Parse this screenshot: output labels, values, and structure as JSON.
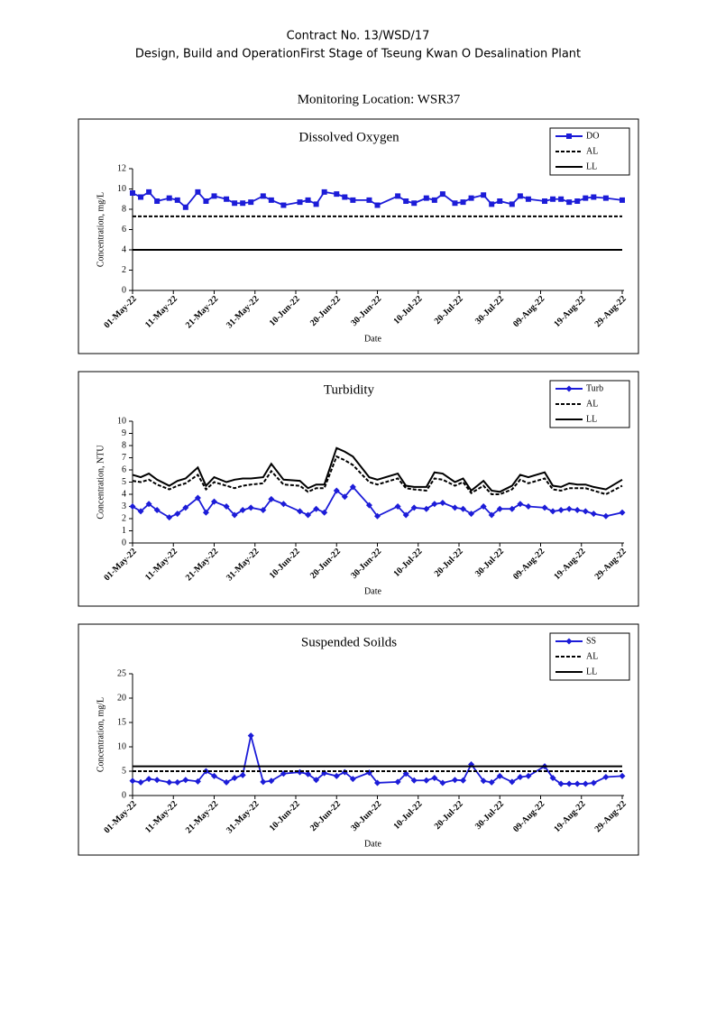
{
  "header": {
    "line1": "Contract No. 13/WSD/17",
    "line2": "Design, Build and OperationFirst Stage  of Tseung Kwan O Desalination Plant",
    "location": "Monitoring Location: WSR37"
  },
  "chart_data": [
    {
      "type": "line",
      "title": "Dissolved Oxygen",
      "xlabel": "Date",
      "ylabel": "Concentration, mg/L",
      "x": [
        "2022-05-01",
        "2022-05-03",
        "2022-05-05",
        "2022-05-07",
        "2022-05-10",
        "2022-05-12",
        "2022-05-14",
        "2022-05-17",
        "2022-05-19",
        "2022-05-21",
        "2022-05-24",
        "2022-05-26",
        "2022-05-28",
        "2022-05-30",
        "2022-06-02",
        "2022-06-04",
        "2022-06-07",
        "2022-06-11",
        "2022-06-13",
        "2022-06-15",
        "2022-06-17",
        "2022-06-20",
        "2022-06-22",
        "2022-06-24",
        "2022-06-28",
        "2022-06-30",
        "2022-07-05",
        "2022-07-07",
        "2022-07-09",
        "2022-07-12",
        "2022-07-14",
        "2022-07-16",
        "2022-07-19",
        "2022-07-21",
        "2022-07-23",
        "2022-07-26",
        "2022-07-28",
        "2022-07-30",
        "2022-08-02",
        "2022-08-04",
        "2022-08-06",
        "2022-08-10",
        "2022-08-12",
        "2022-08-14",
        "2022-08-16",
        "2022-08-18",
        "2022-08-20",
        "2022-08-22",
        "2022-08-25",
        "2022-08-29"
      ],
      "series": [
        {
          "name": "DO",
          "color": "#1c1cd8",
          "marker": "square",
          "line_style": "solid",
          "values": [
            9.6,
            9.2,
            9.7,
            8.8,
            9.1,
            8.9,
            8.2,
            9.7,
            8.8,
            9.3,
            9.0,
            8.6,
            8.6,
            8.7,
            9.3,
            8.9,
            8.4,
            8.7,
            8.9,
            8.5,
            9.7,
            9.5,
            9.2,
            8.9,
            8.9,
            8.4,
            9.3,
            8.8,
            8.6,
            9.1,
            8.9,
            9.5,
            8.6,
            8.7,
            9.1,
            9.4,
            8.5,
            8.8,
            8.5,
            9.3,
            9.0,
            8.8,
            9.0,
            9.0,
            8.7,
            8.8,
            9.1,
            9.2,
            9.1,
            8.9
          ]
        },
        {
          "name": "AL",
          "color": "#000000",
          "marker": "none",
          "line_style": "dashed",
          "values": [
            7.3,
            7.3,
            7.3,
            7.3,
            7.3,
            7.3,
            7.3,
            7.3,
            7.3,
            7.3,
            7.3,
            7.3,
            7.3,
            7.3,
            7.3,
            7.3,
            7.3,
            7.3,
            7.3,
            7.3,
            7.3,
            7.3,
            7.3,
            7.3,
            7.3,
            7.3,
            7.3,
            7.3,
            7.3,
            7.3,
            7.3,
            7.3,
            7.3,
            7.3,
            7.3,
            7.3,
            7.3,
            7.3,
            7.3,
            7.3,
            7.3,
            7.3,
            7.3,
            7.3,
            7.3,
            7.3,
            7.3,
            7.3,
            7.3,
            7.3
          ]
        },
        {
          "name": "LL",
          "color": "#000000",
          "marker": "none",
          "line_style": "solid",
          "values": [
            4,
            4,
            4,
            4,
            4,
            4,
            4,
            4,
            4,
            4,
            4,
            4,
            4,
            4,
            4,
            4,
            4,
            4,
            4,
            4,
            4,
            4,
            4,
            4,
            4,
            4,
            4,
            4,
            4,
            4,
            4,
            4,
            4,
            4,
            4,
            4,
            4,
            4,
            4,
            4,
            4,
            4,
            4,
            4,
            4,
            4,
            4,
            4,
            4,
            4
          ]
        }
      ],
      "xlim": [
        "2022-05-01",
        "2022-08-29"
      ],
      "xticks": [
        {
          "value": "2022-05-01",
          "label": "01-May-22"
        },
        {
          "value": "2022-05-11",
          "label": "11-May-22"
        },
        {
          "value": "2022-05-21",
          "label": "21-May-22"
        },
        {
          "value": "2022-05-31",
          "label": "31-May-22"
        },
        {
          "value": "2022-06-10",
          "label": "10-Jun-22"
        },
        {
          "value": "2022-06-20",
          "label": "20-Jun-22"
        },
        {
          "value": "2022-06-30",
          "label": "30-Jun-22"
        },
        {
          "value": "2022-07-10",
          "label": "10-Jul-22"
        },
        {
          "value": "2022-07-20",
          "label": "20-Jul-22"
        },
        {
          "value": "2022-07-30",
          "label": "30-Jul-22"
        },
        {
          "value": "2022-08-09",
          "label": "09-Aug-22"
        },
        {
          "value": "2022-08-19",
          "label": "19-Aug-22"
        },
        {
          "value": "2022-08-29",
          "label": "29-Aug-22"
        }
      ],
      "ylim": [
        0,
        12
      ],
      "yticks": [
        0,
        2,
        4,
        6,
        8,
        10,
        12
      ],
      "grid": false,
      "legend": "upper right"
    },
    {
      "type": "line",
      "title": "Turbidity",
      "xlabel": "Date",
      "ylabel": "Concentration, NTU",
      "x": [
        "2022-05-01",
        "2022-05-03",
        "2022-05-05",
        "2022-05-07",
        "2022-05-10",
        "2022-05-12",
        "2022-05-14",
        "2022-05-17",
        "2022-05-19",
        "2022-05-21",
        "2022-05-24",
        "2022-05-26",
        "2022-05-28",
        "2022-05-30",
        "2022-06-02",
        "2022-06-04",
        "2022-06-07",
        "2022-06-11",
        "2022-06-13",
        "2022-06-15",
        "2022-06-17",
        "2022-06-20",
        "2022-06-22",
        "2022-06-24",
        "2022-06-28",
        "2022-06-30",
        "2022-07-05",
        "2022-07-07",
        "2022-07-09",
        "2022-07-12",
        "2022-07-14",
        "2022-07-16",
        "2022-07-19",
        "2022-07-21",
        "2022-07-23",
        "2022-07-26",
        "2022-07-28",
        "2022-07-30",
        "2022-08-02",
        "2022-08-04",
        "2022-08-06",
        "2022-08-10",
        "2022-08-12",
        "2022-08-14",
        "2022-08-16",
        "2022-08-18",
        "2022-08-20",
        "2022-08-22",
        "2022-08-25",
        "2022-08-29"
      ],
      "series": [
        {
          "name": "Turb",
          "color": "#1c1cd8",
          "marker": "diamond",
          "line_style": "solid",
          "values": [
            3.0,
            2.6,
            3.2,
            2.7,
            2.1,
            2.4,
            2.9,
            3.7,
            2.5,
            3.4,
            3.0,
            2.3,
            2.7,
            2.9,
            2.7,
            3.6,
            3.2,
            2.6,
            2.3,
            2.8,
            2.5,
            4.3,
            3.8,
            4.6,
            3.1,
            2.2,
            3.0,
            2.3,
            2.9,
            2.8,
            3.2,
            3.3,
            2.9,
            2.8,
            2.4,
            3.0,
            2.3,
            2.8,
            2.8,
            3.2,
            3.0,
            2.9,
            2.6,
            2.7,
            2.8,
            2.7,
            2.6,
            2.4,
            2.2,
            2.5
          ]
        },
        {
          "name": "AL",
          "color": "#000000",
          "marker": "none",
          "line_style": "dashed",
          "values": [
            5.1,
            5.0,
            5.2,
            4.8,
            4.4,
            4.7,
            4.9,
            5.6,
            4.4,
            5.0,
            4.7,
            4.5,
            4.7,
            4.8,
            4.9,
            5.9,
            4.8,
            4.7,
            4.2,
            4.5,
            4.5,
            7.1,
            6.8,
            6.4,
            5.0,
            4.8,
            5.3,
            4.5,
            4.4,
            4.3,
            5.3,
            5.2,
            4.7,
            5.0,
            4.1,
            4.7,
            4.0,
            4.0,
            4.4,
            5.2,
            4.9,
            5.3,
            4.4,
            4.3,
            4.5,
            4.5,
            4.5,
            4.3,
            4.0,
            4.7
          ]
        },
        {
          "name": "LL",
          "color": "#000000",
          "marker": "none",
          "line_style": "solid",
          "values": [
            5.6,
            5.4,
            5.7,
            5.2,
            4.7,
            5.1,
            5.3,
            6.2,
            4.7,
            5.4,
            5.0,
            5.2,
            5.3,
            5.3,
            5.4,
            6.5,
            5.2,
            5.1,
            4.5,
            4.8,
            4.8,
            7.8,
            7.5,
            7.1,
            5.4,
            5.2,
            5.7,
            4.7,
            4.6,
            4.6,
            5.8,
            5.7,
            5.0,
            5.3,
            4.3,
            5.1,
            4.3,
            4.2,
            4.7,
            5.6,
            5.4,
            5.8,
            4.7,
            4.6,
            4.9,
            4.8,
            4.8,
            4.6,
            4.4,
            5.2
          ]
        }
      ],
      "xlim": [
        "2022-05-01",
        "2022-08-29"
      ],
      "xticks": [
        {
          "value": "2022-05-01",
          "label": "01-May-22"
        },
        {
          "value": "2022-05-11",
          "label": "11-May-22"
        },
        {
          "value": "2022-05-21",
          "label": "21-May-22"
        },
        {
          "value": "2022-05-31",
          "label": "31-May-22"
        },
        {
          "value": "2022-06-10",
          "label": "10-Jun-22"
        },
        {
          "value": "2022-06-20",
          "label": "20-Jun-22"
        },
        {
          "value": "2022-06-30",
          "label": "30-Jun-22"
        },
        {
          "value": "2022-07-10",
          "label": "10-Jul-22"
        },
        {
          "value": "2022-07-20",
          "label": "20-Jul-22"
        },
        {
          "value": "2022-07-30",
          "label": "30-Jul-22"
        },
        {
          "value": "2022-08-09",
          "label": "09-Aug-22"
        },
        {
          "value": "2022-08-19",
          "label": "19-Aug-22"
        },
        {
          "value": "2022-08-29",
          "label": "29-Aug-22"
        }
      ],
      "ylim": [
        0,
        10
      ],
      "yticks": [
        0,
        1,
        2,
        3,
        4,
        5,
        6,
        7,
        8,
        9,
        10
      ],
      "grid": false,
      "legend": "upper right"
    },
    {
      "type": "line",
      "title": "Suspended Soilds",
      "xlabel": "Date",
      "ylabel": "Concentration, mg/L",
      "x": [
        "2022-05-01",
        "2022-05-03",
        "2022-05-05",
        "2022-05-07",
        "2022-05-10",
        "2022-05-12",
        "2022-05-14",
        "2022-05-17",
        "2022-05-19",
        "2022-05-21",
        "2022-05-24",
        "2022-05-26",
        "2022-05-28",
        "2022-05-30",
        "2022-06-02",
        "2022-06-04",
        "2022-06-07",
        "2022-06-11",
        "2022-06-13",
        "2022-06-15",
        "2022-06-17",
        "2022-06-20",
        "2022-06-22",
        "2022-06-24",
        "2022-06-28",
        "2022-06-30",
        "2022-07-05",
        "2022-07-07",
        "2022-07-09",
        "2022-07-12",
        "2022-07-14",
        "2022-07-16",
        "2022-07-19",
        "2022-07-21",
        "2022-07-23",
        "2022-07-26",
        "2022-07-28",
        "2022-07-30",
        "2022-08-02",
        "2022-08-04",
        "2022-08-06",
        "2022-08-10",
        "2022-08-12",
        "2022-08-14",
        "2022-08-16",
        "2022-08-18",
        "2022-08-20",
        "2022-08-22",
        "2022-08-25",
        "2022-08-29"
      ],
      "series": [
        {
          "name": "SS",
          "color": "#1c1cd8",
          "marker": "diamond",
          "line_style": "solid",
          "values": [
            3.0,
            2.7,
            3.4,
            3.2,
            2.7,
            2.7,
            3.2,
            2.9,
            5.0,
            4.0,
            2.7,
            3.6,
            4.2,
            12.3,
            2.8,
            3.0,
            4.5,
            4.8,
            4.4,
            3.2,
            4.6,
            4.0,
            4.8,
            3.4,
            4.7,
            2.6,
            2.8,
            4.5,
            3.1,
            3.1,
            3.6,
            2.6,
            3.2,
            3.1,
            6.4,
            3.0,
            2.7,
            4.0,
            2.8,
            3.8,
            4.0,
            6.0,
            3.6,
            2.4,
            2.4,
            2.4,
            2.4,
            2.6,
            3.8,
            4.0
          ]
        },
        {
          "name": "AL",
          "color": "#000000",
          "marker": "none",
          "line_style": "dashed",
          "values": [
            5,
            5,
            5,
            5,
            5,
            5,
            5,
            5,
            5,
            5,
            5,
            5,
            5,
            5,
            5,
            5,
            5,
            5,
            5,
            5,
            5,
            5,
            5,
            5,
            5,
            5,
            5,
            5,
            5,
            5,
            5,
            5,
            5,
            5,
            5,
            5,
            5,
            5,
            5,
            5,
            5,
            5,
            5,
            5,
            5,
            5,
            5,
            5,
            5,
            5
          ]
        },
        {
          "name": "LL",
          "color": "#000000",
          "marker": "none",
          "line_style": "solid",
          "values": [
            6,
            6,
            6,
            6,
            6,
            6,
            6,
            6,
            6,
            6,
            6,
            6,
            6,
            6,
            6,
            6,
            6,
            6,
            6,
            6,
            6,
            6,
            6,
            6,
            6,
            6,
            6,
            6,
            6,
            6,
            6,
            6,
            6,
            6,
            6,
            6,
            6,
            6,
            6,
            6,
            6,
            6,
            6,
            6,
            6,
            6,
            6,
            6,
            6,
            6
          ]
        }
      ],
      "xlim": [
        "2022-05-01",
        "2022-08-29"
      ],
      "xticks": [
        {
          "value": "2022-05-01",
          "label": "01-May-22"
        },
        {
          "value": "2022-05-11",
          "label": "11-May-22"
        },
        {
          "value": "2022-05-21",
          "label": "21-May-22"
        },
        {
          "value": "2022-05-31",
          "label": "31-May-22"
        },
        {
          "value": "2022-06-10",
          "label": "10-Jun-22"
        },
        {
          "value": "2022-06-20",
          "label": "20-Jun-22"
        },
        {
          "value": "2022-06-30",
          "label": "30-Jun-22"
        },
        {
          "value": "2022-07-10",
          "label": "10-Jul-22"
        },
        {
          "value": "2022-07-20",
          "label": "20-Jul-22"
        },
        {
          "value": "2022-07-30",
          "label": "30-Jul-22"
        },
        {
          "value": "2022-08-09",
          "label": "09-Aug-22"
        },
        {
          "value": "2022-08-19",
          "label": "19-Aug-22"
        },
        {
          "value": "2022-08-29",
          "label": "29-Aug-22"
        }
      ],
      "ylim": [
        0,
        25
      ],
      "yticks": [
        0,
        5,
        10,
        15,
        20,
        25
      ],
      "grid": false,
      "legend": "upper right"
    }
  ]
}
